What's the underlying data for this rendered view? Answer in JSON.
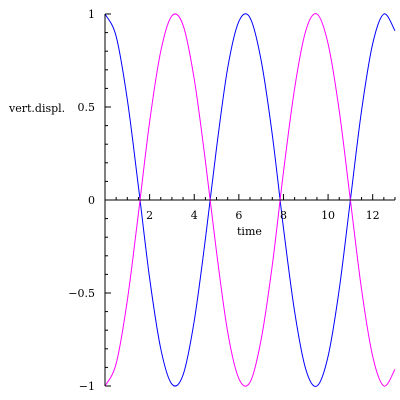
{
  "chart_data": {
    "type": "line",
    "title": "",
    "xlabel": "time",
    "ylabel": "vert.displ.",
    "xlim": [
      0,
      13
    ],
    "ylim": [
      -1,
      1
    ],
    "x_major_ticks": [
      2,
      4,
      6,
      8,
      10,
      12
    ],
    "x_minor_step": 0.5,
    "y_major_ticks": [
      -1,
      -0.5,
      0,
      0.5,
      1
    ],
    "y_tick_labels": [
      "−1",
      "−0.5",
      "0",
      "0.5",
      "1"
    ],
    "y_minor_step": 0.1,
    "grid": false,
    "series": [
      {
        "color": "#0000ff",
        "x": [
          0,
          0.5,
          1,
          1.5,
          2,
          2.5,
          3,
          3.5,
          4,
          4.5,
          5,
          5.5,
          6,
          6.5,
          7,
          7.5,
          8,
          8.5,
          9,
          9.5,
          10,
          10.5,
          11,
          11.5,
          12,
          12.5,
          13
        ],
        "values": [
          1,
          0.88,
          0.54,
          0.07,
          -0.42,
          -0.8,
          -0.99,
          -0.94,
          -0.65,
          -0.21,
          0.28,
          0.71,
          0.96,
          0.98,
          0.75,
          0.35,
          -0.15,
          -0.6,
          -0.91,
          -1.0,
          -0.84,
          -0.48,
          0.0,
          0.48,
          0.84,
          1.0,
          0.91
        ]
      },
      {
        "color": "#ff00ff",
        "x": [
          0,
          0.5,
          1,
          1.5,
          2,
          2.5,
          3,
          3.5,
          4,
          4.5,
          5,
          5.5,
          6,
          6.5,
          7,
          7.5,
          8,
          8.5,
          9,
          9.5,
          10,
          10.5,
          11,
          11.5,
          12,
          12.5,
          13
        ],
        "values": [
          -1,
          -0.88,
          -0.54,
          -0.07,
          0.42,
          0.8,
          0.99,
          0.94,
          0.65,
          0.21,
          -0.28,
          -0.71,
          -0.96,
          -0.98,
          -0.75,
          -0.35,
          0.15,
          0.6,
          0.91,
          1.0,
          0.84,
          0.48,
          0.0,
          -0.48,
          -0.84,
          -1.0,
          -0.91
        ]
      }
    ]
  }
}
